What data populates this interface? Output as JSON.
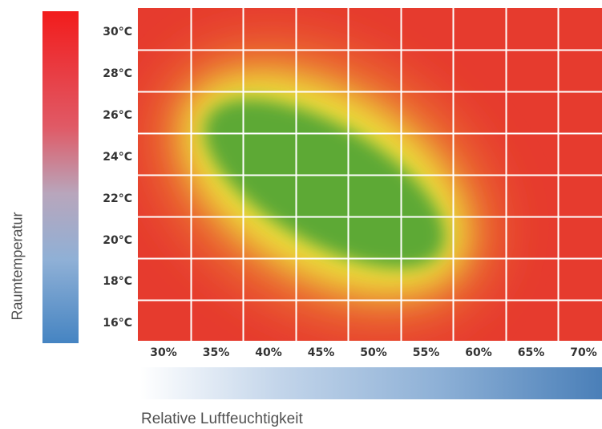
{
  "colors": {
    "hot": "#f21c1c",
    "cold": "#4584c2",
    "heat_red": "#e63b2e",
    "heat_orange": "#ec7a30",
    "heat_yellow": "#ecdf3b",
    "comfort_green": "#5da935",
    "grid": "#ffffff",
    "humidity_low": "#ffffff",
    "humidity_high": "#4a7fb8"
  },
  "chart_data": {
    "type": "heatmap",
    "title": "",
    "xlabel": "Relative Luftfeuchtigkeit",
    "ylabel": "Raumtemperatur",
    "x_tick_labels": [
      "30%",
      "35%",
      "40%",
      "45%",
      "50%",
      "55%",
      "60%",
      "65%",
      "70%"
    ],
    "y_tick_labels": [
      "30°C",
      "28°C",
      "26°C",
      "24°C",
      "22°C",
      "20°C",
      "18°C",
      "16°C"
    ],
    "x_values": [
      30,
      35,
      40,
      45,
      50,
      55,
      60,
      65,
      70
    ],
    "y_values": [
      30,
      28,
      26,
      24,
      22,
      20,
      18,
      16
    ],
    "grid": true,
    "comfort_zone": {
      "center": {
        "humidity": 48,
        "temperature": 23
      },
      "description_colors": [
        "green",
        "yellow",
        "orange",
        "red"
      ]
    }
  }
}
